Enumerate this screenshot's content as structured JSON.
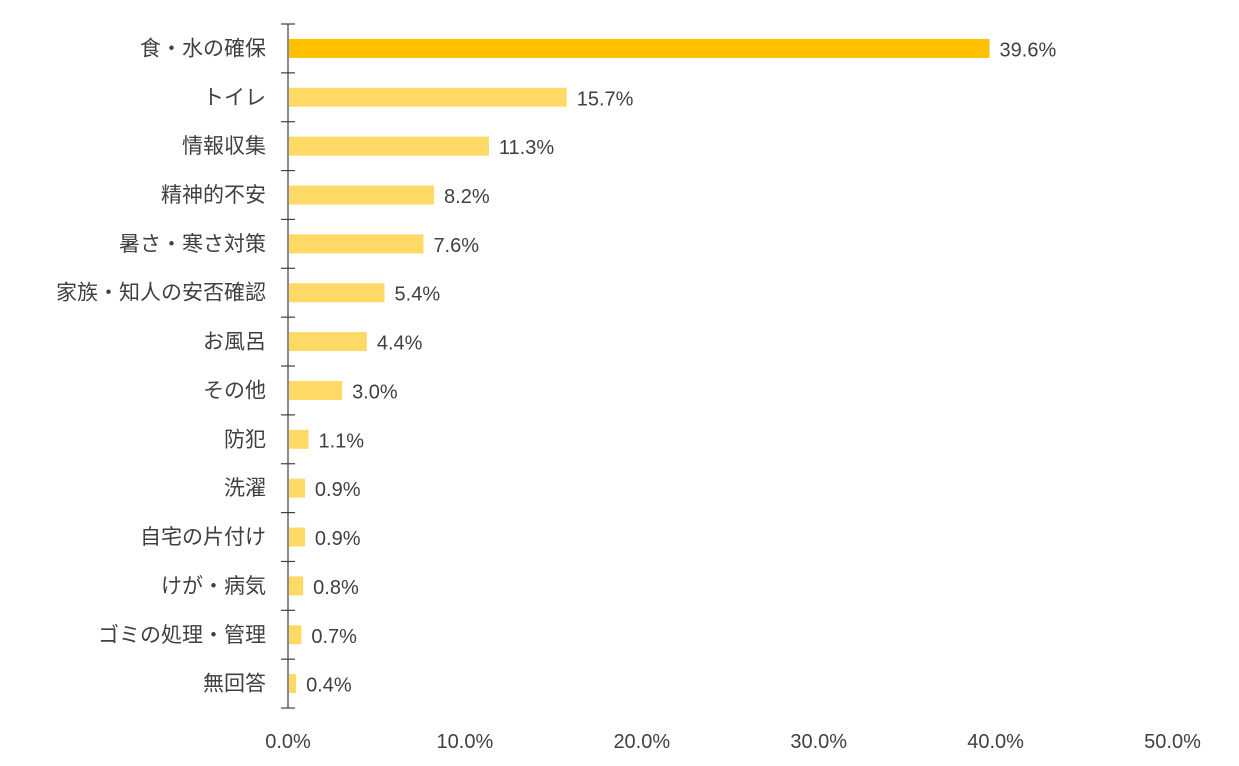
{
  "chart_data": {
    "type": "bar",
    "orientation": "horizontal",
    "title": "",
    "xlabel": "",
    "ylabel": "",
    "categories": [
      "食・水の確保",
      "トイレ",
      "情報収集",
      "精神的不安",
      "暑さ・寒さ対策",
      "家族・知人の安否確認",
      "お風呂",
      "その他",
      "防犯",
      "洗濯",
      "自宅の片付け",
      "けが・病気",
      "ゴミの処理・管理",
      "無回答"
    ],
    "values": [
      39.6,
      15.7,
      11.3,
      8.2,
      7.6,
      5.4,
      4.4,
      3.0,
      1.1,
      0.9,
      0.9,
      0.8,
      0.7,
      0.4
    ],
    "value_labels": [
      "39.6%",
      "15.7%",
      "11.3%",
      "8.2%",
      "7.6%",
      "5.4%",
      "4.4%",
      "3.0%",
      "1.1%",
      "0.9%",
      "0.9%",
      "0.8%",
      "0.7%",
      "0.4%"
    ],
    "x_ticks": [
      "0.0%",
      "10.0%",
      "20.0%",
      "30.0%",
      "40.0%",
      "50.0%"
    ],
    "xlim": [
      0,
      50
    ],
    "grid": false,
    "legend": "none",
    "colors": {
      "highlight": "#FFC000",
      "bar": "#FFD966",
      "axis": "#404040",
      "text": "#404040"
    }
  }
}
